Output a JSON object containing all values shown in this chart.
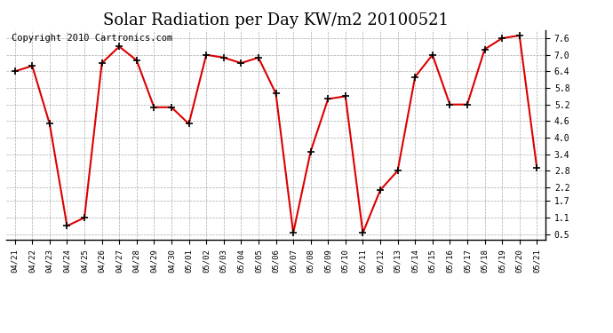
{
  "title": "Solar Radiation per Day KW/m2 20100521",
  "copyright": "Copyright 2010 Cartronics.com",
  "x_labels": [
    "04/21",
    "04/22",
    "04/23",
    "04/24",
    "04/25",
    "04/26",
    "04/27",
    "04/28",
    "04/29",
    "04/30",
    "05/01",
    "05/02",
    "05/03",
    "05/04",
    "05/05",
    "05/06",
    "05/07",
    "05/08",
    "05/09",
    "05/10",
    "05/11",
    "05/12",
    "05/13",
    "05/14",
    "05/15",
    "05/16",
    "05/17",
    "05/18",
    "05/19",
    "05/20",
    "05/21"
  ],
  "y_values": [
    6.4,
    6.6,
    4.5,
    0.8,
    1.1,
    6.7,
    7.3,
    6.8,
    5.1,
    5.1,
    4.5,
    7.0,
    6.9,
    6.7,
    6.9,
    5.6,
    0.55,
    3.5,
    5.4,
    5.5,
    0.55,
    2.1,
    2.8,
    6.2,
    7.0,
    5.2,
    5.2,
    7.2,
    7.6,
    7.7,
    2.9
  ],
  "line_color": "#dd0000",
  "marker_color": "#dd0000",
  "bg_color": "#ffffff",
  "grid_color": "#aaaaaa",
  "y_ticks": [
    0.5,
    1.1,
    1.7,
    2.2,
    2.8,
    3.4,
    4.0,
    4.6,
    5.2,
    5.8,
    6.4,
    7.0,
    7.6
  ],
  "ylim": [
    0.3,
    7.9
  ],
  "title_fontsize": 13,
  "copyright_fontsize": 7.5
}
